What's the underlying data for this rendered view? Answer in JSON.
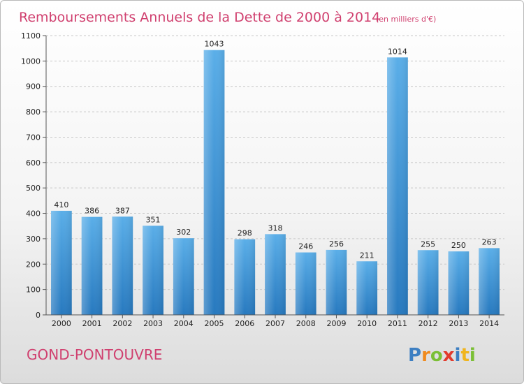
{
  "chart_data": {
    "type": "bar",
    "title": "Remboursements Annuels de la Dette de 2000 à 2014",
    "subtitle": "(en milliers d'€)",
    "categories": [
      "2000",
      "2001",
      "2002",
      "2003",
      "2004",
      "2005",
      "2006",
      "2007",
      "2008",
      "2009",
      "2010",
      "2011",
      "2012",
      "2013",
      "2014"
    ],
    "values": [
      410,
      386,
      387,
      351,
      302,
      1043,
      298,
      318,
      246,
      256,
      211,
      1014,
      255,
      250,
      263
    ],
    "ylim": [
      0,
      1100
    ],
    "yticks": [
      0,
      100,
      200,
      300,
      400,
      500,
      600,
      700,
      800,
      900,
      1000,
      1100
    ],
    "xlabel": "",
    "ylabel": "",
    "grid": true
  },
  "location": "GOND-PONTOUVRE",
  "brand": {
    "letters": [
      "P",
      "r",
      "o",
      "x",
      "i",
      "t",
      "i"
    ],
    "colors": [
      "#3d7fc2",
      "#f08a1e",
      "#7bbf35",
      "#e23b2d",
      "#3d7fc2",
      "#f0b51e",
      "#7bbf35"
    ]
  }
}
